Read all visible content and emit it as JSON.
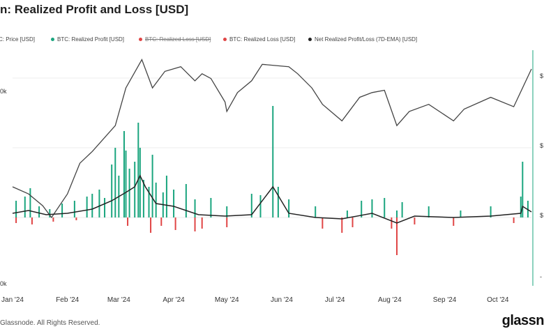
{
  "header": {
    "title": "n: Realized Profit and Loss [USD]"
  },
  "legend": [
    {
      "label": "C: Price [USD]",
      "color": "#d8d8d8",
      "struck": false
    },
    {
      "label": "BTC: Realized Profit [USD]",
      "color": "#1aa57e",
      "struck": false
    },
    {
      "label": "BTC: Realized Loss [USD]",
      "color": "#e04545",
      "struck": true
    },
    {
      "label": "BTC: Realized Loss [USD]",
      "color": "#e04545",
      "struck": false
    },
    {
      "label": "Net Realized Profit/Loss (7D-EMA) [USD]",
      "color": "#222222",
      "struck": false
    }
  ],
  "left_axis_ticks": [
    "0k",
    "0k"
  ],
  "right_axis_ticks": [
    "$",
    "$",
    "$",
    "-"
  ],
  "footer": {
    "copyright": "Glassnode. All Rights Reserved.",
    "logo": "glassn"
  },
  "chart_data": {
    "type": "bar",
    "x_ticks": [
      "Jan '24",
      "Feb '24",
      "Mar '24",
      "Apr '24",
      "May '24",
      "Jun '24",
      "Jul '24",
      "Aug '24",
      "Sep '24",
      "Oct '24"
    ],
    "x_range": [
      "2024-01-01",
      "2024-10-20"
    ],
    "series": [
      {
        "name": "BTC: Realized Profit [USD]",
        "kind": "bar",
        "color": "#1aa57e",
        "points": [
          [
            "2024-01-03",
            0.12
          ],
          [
            "2024-01-08",
            0.15
          ],
          [
            "2024-01-11",
            0.21
          ],
          [
            "2024-01-16",
            0.08
          ],
          [
            "2024-01-22",
            0.06
          ],
          [
            "2024-01-29",
            0.1
          ],
          [
            "2024-02-05",
            0.12
          ],
          [
            "2024-02-12",
            0.15
          ],
          [
            "2024-02-15",
            0.17
          ],
          [
            "2024-02-19",
            0.2
          ],
          [
            "2024-02-22",
            0.14
          ],
          [
            "2024-02-26",
            0.38
          ],
          [
            "2024-02-28",
            0.5
          ],
          [
            "2024-03-01",
            0.3
          ],
          [
            "2024-03-04",
            0.62
          ],
          [
            "2024-03-05",
            0.48
          ],
          [
            "2024-03-07",
            0.35
          ],
          [
            "2024-03-10",
            0.4
          ],
          [
            "2024-03-12",
            0.68
          ],
          [
            "2024-03-13",
            0.5
          ],
          [
            "2024-03-15",
            0.27
          ],
          [
            "2024-03-18",
            0.22
          ],
          [
            "2024-03-20",
            0.45
          ],
          [
            "2024-03-22",
            0.25
          ],
          [
            "2024-03-26",
            0.18
          ],
          [
            "2024-03-28",
            0.3
          ],
          [
            "2024-04-01",
            0.2
          ],
          [
            "2024-04-08",
            0.24
          ],
          [
            "2024-04-13",
            0.13
          ],
          [
            "2024-04-22",
            0.14
          ],
          [
            "2024-05-01",
            0.08
          ],
          [
            "2024-05-15",
            0.17
          ],
          [
            "2024-05-20",
            0.16
          ],
          [
            "2024-05-27",
            0.8
          ],
          [
            "2024-05-30",
            0.22
          ],
          [
            "2024-06-05",
            0.13
          ],
          [
            "2024-06-20",
            0.08
          ],
          [
            "2024-07-08",
            0.05
          ],
          [
            "2024-07-16",
            0.12
          ],
          [
            "2024-07-22",
            0.13
          ],
          [
            "2024-07-29",
            0.14
          ],
          [
            "2024-08-05",
            0.05
          ],
          [
            "2024-08-08",
            0.11
          ],
          [
            "2024-08-23",
            0.08
          ],
          [
            "2024-09-10",
            0.05
          ],
          [
            "2024-09-27",
            0.08
          ],
          [
            "2024-10-14",
            0.15
          ],
          [
            "2024-10-15",
            0.4
          ],
          [
            "2024-10-18",
            0.12
          ]
        ]
      },
      {
        "name": "BTC: Realized Loss [USD]",
        "kind": "bar",
        "color": "#e04545",
        "points": [
          [
            "2024-01-03",
            -0.04
          ],
          [
            "2024-01-12",
            -0.05
          ],
          [
            "2024-01-24",
            -0.03
          ],
          [
            "2024-02-06",
            -0.02
          ],
          [
            "2024-03-06",
            -0.06
          ],
          [
            "2024-03-19",
            -0.11
          ],
          [
            "2024-03-25",
            -0.06
          ],
          [
            "2024-04-02",
            -0.09
          ],
          [
            "2024-04-13",
            -0.1
          ],
          [
            "2024-04-17",
            -0.08
          ],
          [
            "2024-05-01",
            -0.07
          ],
          [
            "2024-06-24",
            -0.08
          ],
          [
            "2024-07-05",
            -0.11
          ],
          [
            "2024-07-11",
            -0.07
          ],
          [
            "2024-08-02",
            -0.08
          ],
          [
            "2024-08-05",
            -0.27
          ],
          [
            "2024-08-15",
            -0.05
          ],
          [
            "2024-09-06",
            -0.06
          ],
          [
            "2024-10-10",
            -0.04
          ]
        ]
      },
      {
        "name": "C: Price [USD]",
        "kind": "line",
        "color": "#444444",
        "points": [
          [
            "2024-01-01",
            0.42
          ],
          [
            "2024-01-10",
            0.39
          ],
          [
            "2024-01-18",
            0.34
          ],
          [
            "2024-01-23",
            0.29
          ],
          [
            "2024-02-01",
            0.39
          ],
          [
            "2024-02-08",
            0.52
          ],
          [
            "2024-02-15",
            0.57
          ],
          [
            "2024-02-28",
            0.68
          ],
          [
            "2024-03-05",
            0.84
          ],
          [
            "2024-03-14",
            0.96
          ],
          [
            "2024-03-20",
            0.84
          ],
          [
            "2024-03-27",
            0.91
          ],
          [
            "2024-04-05",
            0.93
          ],
          [
            "2024-04-13",
            0.87
          ],
          [
            "2024-04-17",
            0.9
          ],
          [
            "2024-04-22",
            0.88
          ],
          [
            "2024-04-30",
            0.78
          ],
          [
            "2024-05-01",
            0.74
          ],
          [
            "2024-05-07",
            0.82
          ],
          [
            "2024-05-15",
            0.87
          ],
          [
            "2024-05-21",
            0.94
          ],
          [
            "2024-06-05",
            0.93
          ],
          [
            "2024-06-10",
            0.9
          ],
          [
            "2024-06-18",
            0.84
          ],
          [
            "2024-06-24",
            0.77
          ],
          [
            "2024-07-05",
            0.7
          ],
          [
            "2024-07-15",
            0.8
          ],
          [
            "2024-07-22",
            0.82
          ],
          [
            "2024-07-29",
            0.83
          ],
          [
            "2024-08-05",
            0.68
          ],
          [
            "2024-08-12",
            0.74
          ],
          [
            "2024-08-23",
            0.77
          ],
          [
            "2024-09-06",
            0.7
          ],
          [
            "2024-09-12",
            0.75
          ],
          [
            "2024-09-27",
            0.8
          ],
          [
            "2024-10-10",
            0.76
          ],
          [
            "2024-10-20",
            0.92
          ]
        ]
      },
      {
        "name": "Net Realized Profit/Loss (7D-EMA) [USD]",
        "kind": "line",
        "color": "#222222",
        "points": [
          [
            "2024-01-01",
            0.03
          ],
          [
            "2024-01-10",
            0.05
          ],
          [
            "2024-01-20",
            0.02
          ],
          [
            "2024-02-01",
            0.03
          ],
          [
            "2024-02-15",
            0.06
          ],
          [
            "2024-02-26",
            0.12
          ],
          [
            "2024-03-05",
            0.18
          ],
          [
            "2024-03-10",
            0.22
          ],
          [
            "2024-03-13",
            0.3
          ],
          [
            "2024-03-16",
            0.22
          ],
          [
            "2024-03-22",
            0.1
          ],
          [
            "2024-04-01",
            0.08
          ],
          [
            "2024-04-15",
            0.02
          ],
          [
            "2024-04-30",
            0.01
          ],
          [
            "2024-05-15",
            0.02
          ],
          [
            "2024-05-27",
            0.22
          ],
          [
            "2024-06-05",
            0.03
          ],
          [
            "2024-06-20",
            0.0
          ],
          [
            "2024-07-05",
            -0.01
          ],
          [
            "2024-07-22",
            0.03
          ],
          [
            "2024-08-05",
            -0.04
          ],
          [
            "2024-08-15",
            0.01
          ],
          [
            "2024-09-06",
            0.0
          ],
          [
            "2024-09-27",
            0.01
          ],
          [
            "2024-10-14",
            0.03
          ],
          [
            "2024-10-15",
            0.08
          ],
          [
            "2024-10-20",
            0.04
          ]
        ]
      }
    ],
    "grid": true
  }
}
